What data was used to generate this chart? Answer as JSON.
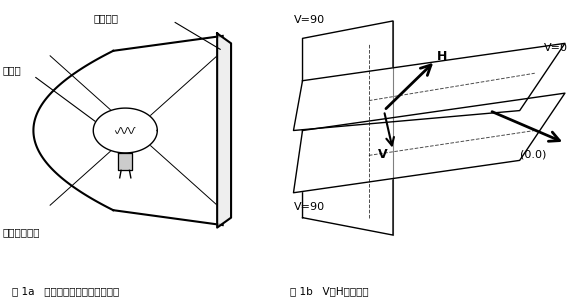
{
  "fig_width": 5.8,
  "fig_height": 3.0,
  "dpi": 100,
  "caption_left": "图 1a   传统交通信号灯结构示意图",
  "caption_right": "图 1b   V－H坐标系统",
  "label_yousetouching": "有色透镜",
  "label_baizhideng": "白炽灯",
  "label_paowumian": "抛物面反射镜",
  "label_V90_top": "V=90",
  "label_V0": "V=0",
  "label_V90_bot": "V=90",
  "label_H": "H",
  "label_V": "V",
  "label_00": "(0.0)"
}
